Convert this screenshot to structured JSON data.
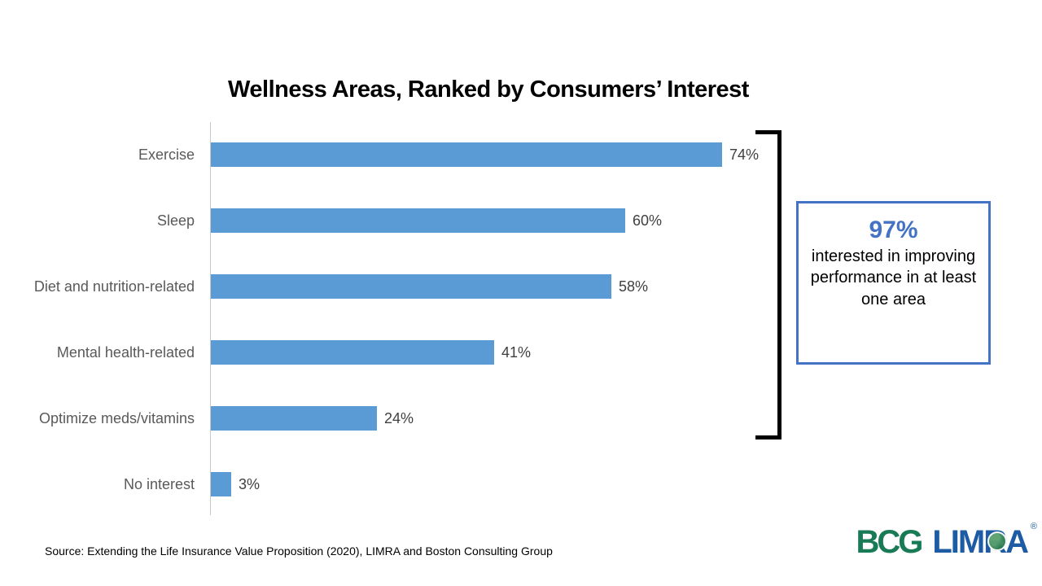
{
  "title": "Wellness Areas, Ranked by Consumers’ Interest",
  "chart_data": {
    "type": "bar",
    "orientation": "horizontal",
    "title": "Wellness Areas, Ranked by Consumers’ Interest",
    "categories": [
      "Exercise",
      "Sleep",
      "Diet and nutrition-related",
      "Mental health-related",
      "Optimize meds/vitamins",
      "No interest"
    ],
    "values": [
      74,
      60,
      58,
      41,
      24,
      3
    ],
    "value_labels": [
      "74%",
      "60%",
      "58%",
      "41%",
      "24%",
      "3%"
    ],
    "xlabel": "",
    "ylabel": "",
    "xlim": [
      0,
      80
    ],
    "grid": false,
    "axis_ticks_visible": false,
    "bar_color": "#5B9BD5",
    "label_color": "#595959",
    "value_label_color": "#404040"
  },
  "callout": {
    "headline": "97%",
    "body": "interested in improving performance in at least one area",
    "border_color": "#4472C4",
    "headline_color": "#4472C4"
  },
  "bracket": {
    "covers_categories": [
      "Exercise",
      "Sleep",
      "Diet and nutrition-related",
      "Mental health-related",
      "Optimize meds/vitamins"
    ],
    "color": "#000000"
  },
  "source": "Source: Extending the Life Insurance Value Proposition (2020), LIMRA and Boston Consulting Group",
  "logos": {
    "bcg_text": "BCG",
    "bcg_color": "#197A56",
    "limra_text": "LIMRA",
    "limra_color": "#1D5BA4",
    "registered_mark": "®"
  }
}
